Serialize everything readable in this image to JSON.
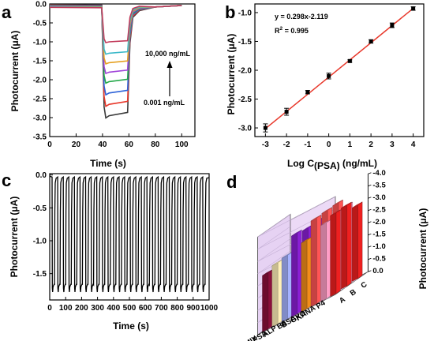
{
  "panels": [
    {
      "label": "a"
    },
    {
      "label": "b"
    },
    {
      "label": "c"
    },
    {
      "label": "d"
    }
  ],
  "chart_data": [
    {
      "panel": "a",
      "type": "line",
      "xlabel": "Time (s)",
      "ylabel": "Photocurrent (μA)",
      "xlim": [
        0,
        110
      ],
      "ylim": [
        -3.5,
        0.0
      ],
      "xticks": [
        "0",
        "20",
        "40",
        "60",
        "80",
        "100"
      ],
      "yticks": [
        "0.0",
        "-0.5",
        "-1.0",
        "-1.5",
        "-2.0",
        "-2.5",
        "-3.0",
        "-3.5"
      ],
      "light_on": 40,
      "light_off": 60,
      "annotations": {
        "top": "10,000 ng/mL",
        "bottom": "0.001 ng/mL"
      },
      "colors": [
        "#3a3a3a",
        "#e8372a",
        "#2e63d8",
        "#24a84a",
        "#a044d8",
        "#e5a020",
        "#3cb9c9",
        "#c23a5a"
      ],
      "series": [
        {
          "plateau": -2.95
        },
        {
          "plateau": -2.65
        },
        {
          "plateau": -2.35
        },
        {
          "plateau": -2.05
        },
        {
          "plateau": -1.8
        },
        {
          "plateau": -1.55
        },
        {
          "plateau": -1.3
        },
        {
          "plateau": -1.0
        }
      ]
    },
    {
      "panel": "b",
      "type": "scatter",
      "xlabel": "Log C",
      "xlabel_sub": "(PSA)",
      "xlabel_unit": " (ng/mL)",
      "ylabel": "Photocurrent (μA)",
      "xlim": [
        -3.5,
        4.5
      ],
      "ylim": [
        -3.15,
        -0.85
      ],
      "xticks": [
        "-3",
        "-2",
        "-1",
        "0",
        "1",
        "2",
        "3",
        "4"
      ],
      "yticks": [
        "-1.0",
        "-1.5",
        "-2.0",
        "-2.5",
        "-3.0"
      ],
      "equation": "y = 0.298x-2.119",
      "r2_prefix": "R",
      "r2_sup": "2",
      "r2_value": " = 0.995",
      "line_color": "#e8372a",
      "x": [
        -3,
        -2,
        -1,
        0,
        1,
        2,
        3,
        4
      ],
      "y": [
        -3.0,
        -2.72,
        -2.38,
        -2.1,
        -1.84,
        -1.5,
        -1.22,
        -0.93
      ],
      "err": [
        0.07,
        0.06,
        0.03,
        0.05,
        0.02,
        0.03,
        0.04,
        0.03
      ]
    },
    {
      "panel": "c",
      "type": "line",
      "xlabel": "Time (s)",
      "ylabel": "Photocurrent (μA)",
      "xlim": [
        0,
        1000
      ],
      "ylim": [
        -1.9,
        0.02
      ],
      "xticks": [
        "0",
        "100",
        "200",
        "300",
        "400",
        "500",
        "600",
        "700",
        "800",
        "900",
        "1000"
      ],
      "yticks": [
        "0.0",
        "-0.5",
        "-1.0",
        "-1.5"
      ],
      "cycles": 28,
      "first_cycle": 15,
      "period": 35,
      "plateau": -1.72
    },
    {
      "panel": "d",
      "type": "bar3d",
      "zlabel": "Photocurrent (μA)",
      "zticks": [
        "0.0",
        "-0.5",
        "-1.0",
        "-1.5",
        "-2.0",
        "-2.5",
        "-3.0",
        "-3.5",
        "-4.0"
      ],
      "categories": [
        "P4",
        "KANA",
        "GXO",
        "BSA",
        "B6",
        "ALP",
        "PSA",
        "MIX"
      ],
      "groups": [
        "A",
        "B",
        "C"
      ],
      "colors": [
        "#ee2020",
        "#ff9ec6",
        "#ff5555",
        "#f18d1b",
        "#8a1fd4",
        "#a6b2ff",
        "#fff0b8",
        "#8a0f3b"
      ],
      "series": [
        {
          "name": "A",
          "values": [
            3.3,
            3.1,
            3.5,
            2.8,
            3.3,
            2.6,
            2.5,
            2.3
          ]
        },
        {
          "name": "B",
          "values": [
            3.3,
            3.2,
            3.5,
            3.0,
            3.2,
            2.5,
            1.2,
            1.5
          ]
        },
        {
          "name": "C",
          "values": [
            3.0,
            3.2,
            3.5,
            2.9,
            3.2,
            2.5,
            2.2,
            1.9
          ]
        }
      ]
    }
  ]
}
